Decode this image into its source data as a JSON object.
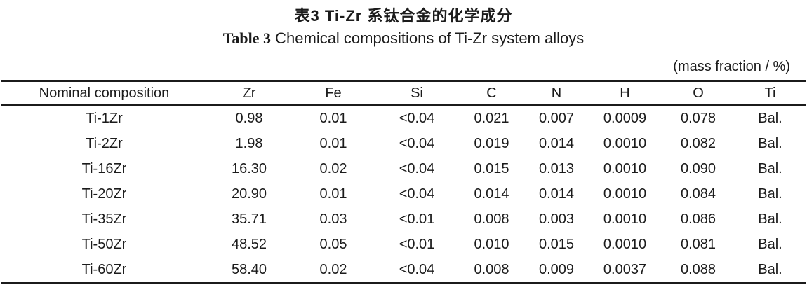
{
  "header": {
    "title_cn": "表3  Ti-Zr 系钛合金的化学成分",
    "title_en_prefix": "Table 3",
    "title_en_rest": " Chemical compositions of Ti-Zr system alloys",
    "unit_note": "(mass fraction / %)"
  },
  "table": {
    "columns": [
      "Nominal composition",
      "Zr",
      "Fe",
      "Si",
      "C",
      "N",
      "H",
      "O",
      "Ti"
    ],
    "rows": [
      [
        "Ti-1Zr",
        "0.98",
        "0.01",
        "<0.04",
        "0.021",
        "0.007",
        "0.0009",
        "0.078",
        "Bal."
      ],
      [
        "Ti-2Zr",
        "1.98",
        "0.01",
        "<0.04",
        "0.019",
        "0.014",
        "0.0010",
        "0.082",
        "Bal."
      ],
      [
        "Ti-16Zr",
        "16.30",
        "0.02",
        "<0.04",
        "0.015",
        "0.013",
        "0.0010",
        "0.090",
        "Bal."
      ],
      [
        "Ti-20Zr",
        "20.90",
        "0.01",
        "<0.04",
        "0.014",
        "0.014",
        "0.0010",
        "0.084",
        "Bal."
      ],
      [
        "Ti-35Zr",
        "35.71",
        "0.03",
        "<0.01",
        "0.008",
        "0.003",
        "0.0010",
        "0.086",
        "Bal."
      ],
      [
        "Ti-50Zr",
        "48.52",
        "0.05",
        "<0.01",
        "0.010",
        "0.015",
        "0.0010",
        "0.081",
        "Bal."
      ],
      [
        "Ti-60Zr",
        "58.40",
        "0.02",
        "<0.04",
        "0.008",
        "0.009",
        "0.0037",
        "0.088",
        "Bal."
      ]
    ]
  },
  "colors": {
    "text": "#1b1b1b",
    "background": "#ffffff",
    "rule": "#1b1b1b"
  }
}
